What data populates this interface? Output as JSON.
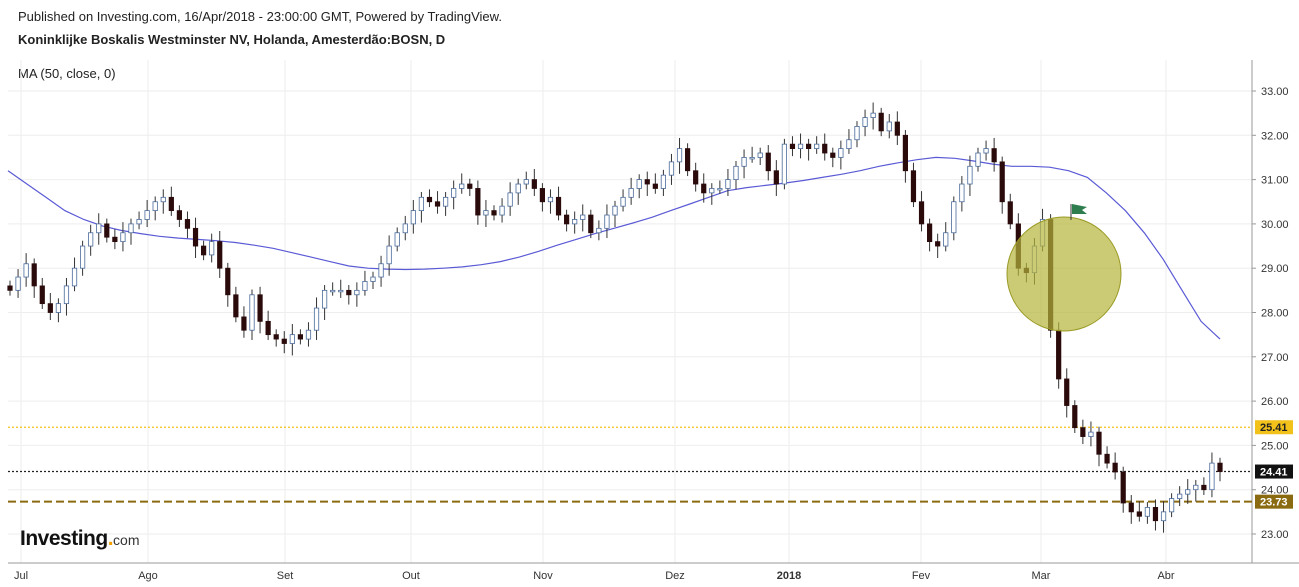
{
  "header": {
    "published": "Published on Investing.com, 16/Apr/2018 - 23:00:00 GMT, Powered by TradingView.",
    "symbol": "Koninklijke Boskalis Westminster NV, Holanda, Amesterdão:BOSN, D"
  },
  "indicator_label": "MA (50, close, 0)",
  "logo": {
    "main": "Investing",
    "domain": "com"
  },
  "colors": {
    "up": "#ffffff",
    "down": "#2a0a0a",
    "wick": "#333333",
    "ma": "#5a5ad6",
    "yellow_line": "#f2c11a",
    "brown_line": "#8a6b12",
    "circle_fill": "#b5b43a",
    "flag": "#2e7d4f",
    "grid": "#eeeeee"
  },
  "chart_data": {
    "type": "candlestick",
    "ylim": [
      22.7,
      33.5
    ],
    "yticks": [
      "23.00",
      "24.00",
      "25.00",
      "26.00",
      "27.00",
      "28.00",
      "29.00",
      "30.00",
      "31.00",
      "32.00",
      "33.00"
    ],
    "xticks": [
      "Jul",
      "Ago",
      "Set",
      "Out",
      "Nov",
      "Dez",
      "2018",
      "Fev",
      "Mar",
      "Abr"
    ],
    "price_labels": {
      "last": "24.41",
      "resistance": "25.41",
      "support": "23.73"
    },
    "horizontal_lines": [
      {
        "value": 25.41,
        "style": "dotted",
        "color": "yellow_line"
      },
      {
        "value": 24.41,
        "style": "dotted",
        "color": "black"
      },
      {
        "value": 23.73,
        "style": "dashed",
        "color": "brown_line"
      }
    ],
    "closes": [
      28.5,
      28.8,
      29.1,
      28.6,
      28.2,
      28.0,
      28.2,
      28.6,
      29.0,
      29.5,
      29.8,
      30.0,
      29.7,
      29.6,
      29.8,
      30.0,
      30.1,
      30.3,
      30.5,
      30.6,
      30.3,
      30.1,
      29.9,
      29.5,
      29.3,
      29.6,
      29.0,
      28.4,
      27.9,
      27.6,
      28.4,
      27.8,
      27.5,
      27.4,
      27.3,
      27.5,
      27.4,
      27.6,
      28.1,
      28.5,
      28.5,
      28.5,
      28.4,
      28.5,
      28.7,
      28.8,
      29.1,
      29.5,
      29.8,
      30.0,
      30.3,
      30.6,
      30.5,
      30.4,
      30.6,
      30.8,
      30.9,
      30.8,
      30.2,
      30.3,
      30.2,
      30.4,
      30.7,
      30.9,
      31.0,
      30.8,
      30.5,
      30.6,
      30.2,
      30.0,
      30.1,
      30.2,
      29.8,
      29.9,
      30.2,
      30.4,
      30.6,
      30.8,
      31.0,
      30.9,
      30.8,
      31.1,
      31.4,
      31.7,
      31.2,
      30.9,
      30.7,
      30.8,
      30.8,
      31.0,
      31.3,
      31.5,
      31.5,
      31.6,
      31.2,
      30.9,
      31.8,
      31.7,
      31.8,
      31.7,
      31.8,
      31.6,
      31.5,
      31.7,
      31.9,
      32.2,
      32.4,
      32.5,
      32.1,
      32.3,
      32.0,
      31.2,
      30.5,
      30.0,
      29.6,
      29.5,
      29.8,
      30.5,
      30.9,
      31.3,
      31.6,
      31.7,
      31.4,
      30.5,
      30.0,
      29.0,
      28.9,
      29.5,
      30.1,
      27.6,
      26.5,
      25.9,
      25.4,
      25.2,
      25.3,
      24.8,
      24.6,
      24.4,
      23.7,
      23.5,
      23.4,
      23.6,
      23.3,
      23.5,
      23.8,
      23.9,
      24.0,
      24.1,
      24.0,
      24.6,
      24.41
    ],
    "ma50": [
      31.2,
      30.9,
      30.6,
      30.3,
      30.1,
      29.95,
      29.85,
      29.78,
      29.72,
      29.68,
      29.65,
      29.62,
      29.58,
      29.52,
      29.45,
      29.35,
      29.25,
      29.15,
      29.05,
      29.0,
      28.98,
      28.97,
      28.98,
      29.0,
      29.03,
      29.08,
      29.15,
      29.25,
      29.38,
      29.52,
      29.65,
      29.78,
      29.9,
      30.02,
      30.15,
      30.3,
      30.45,
      30.6,
      30.75,
      30.82,
      30.87,
      30.92,
      30.98,
      31.05,
      31.12,
      31.2,
      31.3,
      31.38,
      31.45,
      31.5,
      31.48,
      31.42,
      31.35,
      31.3,
      31.3,
      31.28,
      31.2,
      31.05,
      30.7,
      30.3,
      29.8,
      29.2,
      28.5,
      27.8,
      27.4
    ]
  }
}
